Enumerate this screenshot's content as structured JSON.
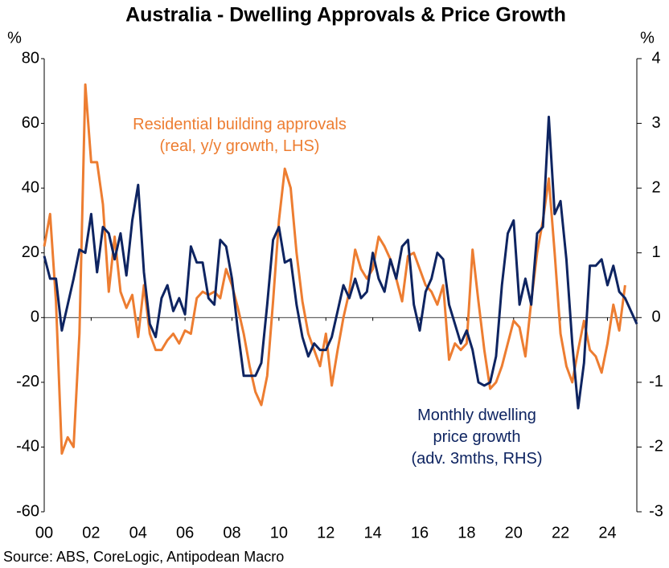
{
  "chart_data": {
    "type": "line",
    "title": "Australia - Dwelling Approvals & Price Growth",
    "y_label": "%",
    "y2_label": "%",
    "source": "Source: ABS, CoreLogic, Antipodean Macro",
    "annotations": [
      {
        "series": 0,
        "lines": [
          "Residential building approvals",
          "(real, y/y growth, LHS)"
        ]
      },
      {
        "series": 1,
        "lines": [
          "Monthly dwelling",
          "price growth",
          "(adv. 3mths, RHS)"
        ]
      }
    ],
    "x": [
      2000,
      2000.25,
      2000.5,
      2000.75,
      2001,
      2001.25,
      2001.5,
      2001.75,
      2002,
      2002.25,
      2002.5,
      2002.75,
      2003,
      2003.25,
      2003.5,
      2003.75,
      2004,
      2004.25,
      2004.5,
      2004.75,
      2005,
      2005.25,
      2005.5,
      2005.75,
      2006,
      2006.25,
      2006.5,
      2006.75,
      2007,
      2007.25,
      2007.5,
      2007.75,
      2008,
      2008.25,
      2008.5,
      2008.75,
      2009,
      2009.25,
      2009.5,
      2009.75,
      2010,
      2010.25,
      2010.5,
      2010.75,
      2011,
      2011.25,
      2011.5,
      2011.75,
      2012,
      2012.25,
      2012.5,
      2012.75,
      2013,
      2013.25,
      2013.5,
      2013.75,
      2014,
      2014.25,
      2014.5,
      2014.75,
      2015,
      2015.25,
      2015.5,
      2015.75,
      2016,
      2016.25,
      2016.5,
      2016.75,
      2017,
      2017.25,
      2017.5,
      2017.75,
      2018,
      2018.25,
      2018.5,
      2018.75,
      2019,
      2019.25,
      2019.5,
      2019.75,
      2020,
      2020.25,
      2020.5,
      2020.75,
      2021,
      2021.25,
      2021.5,
      2021.75,
      2022,
      2022.25,
      2022.5,
      2022.75,
      2023,
      2023.25,
      2023.5,
      2023.75,
      2024,
      2024.25,
      2024.5,
      2024.75,
      2025,
      2025.25
    ],
    "series": [
      {
        "name": "Residential building approvals (real, y/y growth, LHS)",
        "color": "#ED7D31",
        "axis": "y",
        "values": [
          22,
          32,
          5,
          -42,
          -37,
          -40,
          -5,
          72,
          48,
          48,
          35,
          8,
          25,
          8,
          3,
          7,
          -6,
          10,
          -5,
          -10,
          -10,
          -7,
          -5,
          -8,
          -4,
          -5,
          6,
          8,
          7,
          8,
          6,
          15,
          10,
          3,
          -5,
          -15,
          -23,
          -27,
          -18,
          5,
          30,
          46,
          40,
          20,
          5,
          -5,
          -10,
          -15,
          -5,
          -21,
          -10,
          0,
          8,
          21,
          15,
          12,
          15,
          25,
          22,
          18,
          12,
          5,
          19,
          20,
          15,
          10,
          8,
          4,
          10,
          -13,
          -8,
          -10,
          -8,
          21,
          5,
          -10,
          -22,
          -20,
          -15,
          -8,
          -1,
          -3,
          -12,
          5,
          20,
          30,
          43,
          20,
          -5,
          -15,
          -20,
          -10,
          -1,
          -10,
          -12,
          -17,
          -8,
          4,
          -4,
          10,
          null,
          null
        ]
      },
      {
        "name": "Monthly dwelling price growth (adv. 3mths, RHS)",
        "color": "#0E2461",
        "axis": "y2",
        "values": [
          0.95,
          0.6,
          0.6,
          -0.2,
          0.2,
          0.6,
          1.05,
          1.0,
          1.6,
          0.7,
          1.4,
          1.3,
          0.9,
          1.3,
          0.65,
          1.5,
          2.05,
          0.7,
          -0.1,
          -0.3,
          0.3,
          0.5,
          0.1,
          0.3,
          0.05,
          1.1,
          0.85,
          0.85,
          0.3,
          0.2,
          1.2,
          1.1,
          0.6,
          -0.2,
          -0.9,
          -0.9,
          -0.9,
          -0.7,
          0.2,
          1.2,
          1.4,
          0.85,
          0.9,
          0.2,
          -0.3,
          -0.6,
          -0.4,
          -0.5,
          -0.5,
          -0.3,
          0.1,
          0.5,
          0.3,
          0.6,
          0.3,
          0.4,
          1.0,
          0.6,
          0.4,
          0.9,
          0.6,
          1.1,
          1.2,
          0.2,
          -0.2,
          0.4,
          0.6,
          1.0,
          0.9,
          0.2,
          -0.1,
          -0.4,
          -0.2,
          -0.5,
          -1.0,
          -1.05,
          -1.0,
          -0.6,
          0.5,
          1.3,
          1.5,
          0.2,
          0.6,
          0.2,
          1.3,
          1.4,
          3.1,
          1.6,
          1.8,
          0.9,
          -0.4,
          -1.4,
          -0.7,
          0.8,
          0.8,
          0.9,
          0.5,
          0.8,
          0.4,
          0.3,
          0.1,
          -0.1
        ]
      }
    ],
    "xlim": [
      2000,
      2025.25
    ],
    "xticks": [
      {
        "value": 2000,
        "label": "00"
      },
      {
        "value": 2002,
        "label": "02"
      },
      {
        "value": 2004,
        "label": "04"
      },
      {
        "value": 2006,
        "label": "06"
      },
      {
        "value": 2008,
        "label": "08"
      },
      {
        "value": 2010,
        "label": "10"
      },
      {
        "value": 2012,
        "label": "12"
      },
      {
        "value": 2014,
        "label": "14"
      },
      {
        "value": 2016,
        "label": "16"
      },
      {
        "value": 2018,
        "label": "18"
      },
      {
        "value": 2020,
        "label": "20"
      },
      {
        "value": 2022,
        "label": "22"
      },
      {
        "value": 2024,
        "label": "24"
      }
    ],
    "ylim": [
      -60,
      80
    ],
    "yticks": [
      -60,
      -40,
      -20,
      0,
      20,
      40,
      60,
      80
    ],
    "y2lim": [
      -3,
      4
    ],
    "y2ticks": [
      -3,
      -2,
      -1,
      0,
      1,
      2,
      3,
      4
    ],
    "grid": false
  }
}
